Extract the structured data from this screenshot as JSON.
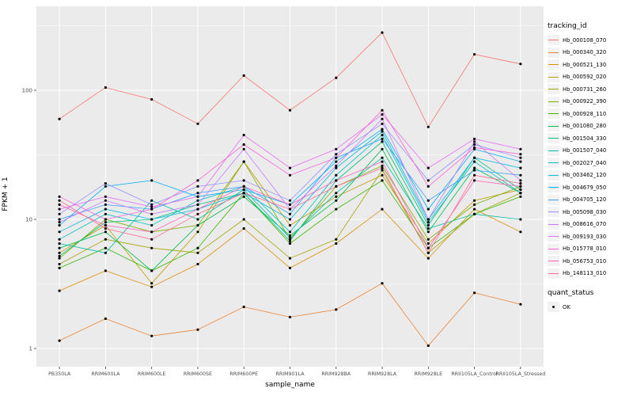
{
  "chart_data": {
    "type": "line",
    "title": "",
    "xlabel": "sample_name",
    "ylabel": "FPKM + 1",
    "y_scale": "log10",
    "y_ticks": [
      1,
      10,
      100
    ],
    "y_minor_ticks": [
      3.162,
      31.62,
      316.2
    ],
    "ylim": [
      0.73,
      450
    ],
    "grid": true,
    "panel_bg": "#EBEBEB",
    "grid_color": "#FFFFFF",
    "point_color": "#000000",
    "categories": [
      "PB350LA",
      "RRIM600LA",
      "RRIM600LE",
      "RRIM600SE",
      "RRIM600PE",
      "RRIM901LA",
      "RRIM928BA",
      "RRIM928LA",
      "RRIM928LE",
      "RRII105LA_Control",
      "RRII105LA_Stressed"
    ],
    "series": [
      {
        "name": "Hb_000108_070",
        "color": "#F8766D",
        "values": [
          60,
          105,
          85,
          55,
          130,
          70,
          125,
          280,
          52,
          190,
          160
        ]
      },
      {
        "name": "Hb_000340_320",
        "color": "#EA8331",
        "values": [
          1.15,
          1.7,
          1.25,
          1.4,
          2.1,
          1.75,
          2.0,
          3.2,
          1.05,
          2.7,
          2.2
        ]
      },
      {
        "name": "Hb_000521_130",
        "color": "#D89000",
        "values": [
          2.8,
          4.0,
          3.0,
          4.5,
          8.5,
          4.2,
          6.5,
          12,
          5.0,
          12,
          8
        ]
      },
      {
        "name": "Hb_000592_020",
        "color": "#C09B00",
        "values": [
          5.5,
          9,
          3.2,
          8,
          28,
          9,
          15,
          22,
          6.5,
          14,
          17
        ]
      },
      {
        "name": "Hb_000731_260",
        "color": "#A3A500",
        "values": [
          4.5,
          7,
          6,
          5.5,
          10,
          5,
          7,
          24,
          5.5,
          11,
          16
        ]
      },
      {
        "name": "Hb_000922_390",
        "color": "#7CAE00",
        "values": [
          5,
          10,
          8,
          9,
          28,
          7,
          18,
          26,
          7,
          13,
          18
        ]
      },
      {
        "name": "Hb_000928_110",
        "color": "#39B600",
        "values": [
          4.2,
          6,
          4,
          6,
          16,
          6.5,
          12,
          20,
          6,
          11,
          15
        ]
      },
      {
        "name": "Hb_001080_280",
        "color": "#00BB4E",
        "values": [
          6,
          8,
          4,
          9,
          15,
          7.5,
          14,
          35,
          8,
          25,
          16
        ]
      },
      {
        "name": "Hb_001504_330",
        "color": "#00BF7D",
        "values": [
          5.2,
          9.5,
          10,
          13,
          16,
          6.8,
          20,
          40,
          9,
          30,
          17
        ]
      },
      {
        "name": "Hb_001507_040",
        "color": "#00C1A3",
        "values": [
          6.5,
          5.5,
          14,
          10,
          17,
          7.2,
          16,
          30,
          8.5,
          11,
          10
        ]
      },
      {
        "name": "Hb_002027_040",
        "color": "#00BFC4",
        "values": [
          7,
          11,
          9,
          14,
          18,
          8,
          22,
          45,
          9.5,
          28,
          16
        ]
      },
      {
        "name": "Hb_003462_120",
        "color": "#00BAE0",
        "values": [
          8,
          12,
          10,
          12,
          16,
          10,
          25,
          48,
          10,
          30,
          25
        ]
      },
      {
        "name": "Hb_004679_050",
        "color": "#00B0F6",
        "values": [
          9,
          18,
          20,
          15,
          17,
          13,
          28,
          50,
          12,
          35,
          28
        ]
      },
      {
        "name": "Hb_004705_120",
        "color": "#35A2FF",
        "values": [
          10,
          13,
          12,
          16,
          18,
          11,
          30,
          42,
          14,
          24,
          22
        ]
      },
      {
        "name": "Hb_005098_030",
        "color": "#9590FF",
        "values": [
          11,
          19,
          13,
          18,
          20,
          14,
          32,
          55,
          20,
          38,
          30
        ]
      },
      {
        "name": "Hb_008616_070",
        "color": "#C77CFF",
        "values": [
          9.5,
          14,
          11,
          13,
          35,
          12,
          26,
          60,
          10,
          40,
          20
        ]
      },
      {
        "name": "Hb_009193_030",
        "color": "#E76BF3",
        "values": [
          12,
          15,
          12.5,
          15,
          45,
          25,
          35,
          65,
          25,
          42,
          35
        ]
      },
      {
        "name": "Hb_015778_010",
        "color": "#FA62DB",
        "values": [
          15,
          10,
          12,
          20,
          38,
          22,
          30,
          70,
          18,
          36,
          32
        ]
      },
      {
        "name": "Hb_056753_010",
        "color": "#FF62BC",
        "values": [
          13,
          9,
          8,
          12,
          18,
          13,
          20,
          28,
          6,
          20,
          18
        ]
      },
      {
        "name": "Hb_148113_010",
        "color": "#FF6A98",
        "values": [
          14,
          8.5,
          7,
          11,
          16,
          12,
          18,
          25,
          5.5,
          22,
          19
        ]
      }
    ],
    "legend": {
      "color_title": "tracking_id",
      "shape_title": "quant_status",
      "shape_items": [
        {
          "label": "OK",
          "color": "#000000"
        }
      ],
      "position": "right"
    }
  }
}
